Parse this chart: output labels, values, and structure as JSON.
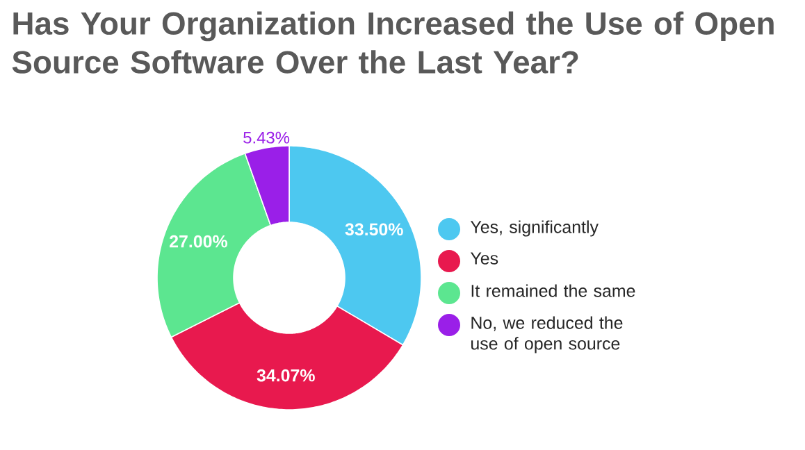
{
  "chart_data": {
    "type": "donut",
    "title": "Has Your Organization Increased the Use of Open Source Software Over the Last Year?",
    "categories": [
      "Yes, significantly",
      "Yes",
      "It remained the same",
      "No, we reduced the use of open source"
    ],
    "values": [
      33.5,
      34.07,
      27.0,
      5.43
    ],
    "colors": [
      "#4dc8f0",
      "#e8194e",
      "#5ce690",
      "#9a1fe8"
    ],
    "value_labels": [
      "33.50%",
      "34.07%",
      "27.00%",
      "5.43%"
    ],
    "legend": "right"
  }
}
